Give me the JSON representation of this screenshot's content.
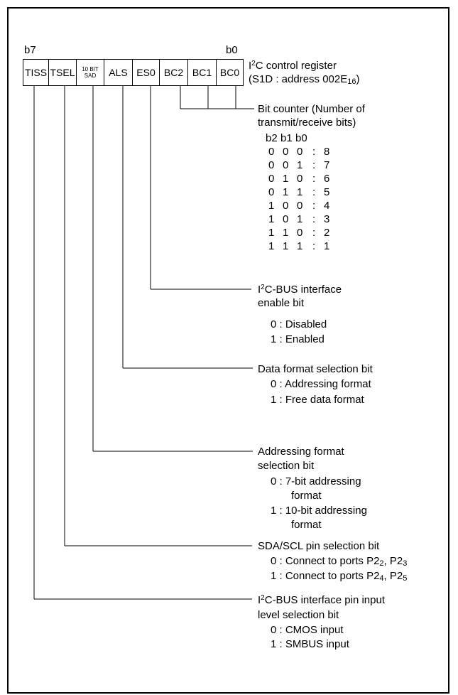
{
  "register": {
    "msb_label": "b7",
    "lsb_label": "b0",
    "bits": [
      "TISS",
      "TSEL",
      "10 BIT SAD",
      "ALS",
      "ES0",
      "BC2",
      "BC1",
      "BC0"
    ],
    "bit_small_lines": [
      "10 BIT",
      "SAD"
    ],
    "title_i": "I",
    "title_sup": "2",
    "title_rest": "C control register",
    "address_prefix": "(S1D : address 002E",
    "address_sub": "16",
    "address_suffix": ")"
  },
  "bit_counter": {
    "title_line1": "Bit counter (Number of",
    "title_line2": "transmit/receive bits)",
    "header": [
      "b2",
      "b1",
      "b0"
    ],
    "rows": [
      {
        "b2": "0",
        "b1": "0",
        "b0": "0",
        "val": "8"
      },
      {
        "b2": "0",
        "b1": "0",
        "b0": "1",
        "val": "7"
      },
      {
        "b2": "0",
        "b1": "1",
        "b0": "0",
        "val": "6"
      },
      {
        "b2": "0",
        "b1": "1",
        "b0": "1",
        "val": "5"
      },
      {
        "b2": "1",
        "b1": "0",
        "b0": "0",
        "val": "4"
      },
      {
        "b2": "1",
        "b1": "0",
        "b0": "1",
        "val": "3"
      },
      {
        "b2": "1",
        "b1": "1",
        "b0": "0",
        "val": "2"
      },
      {
        "b2": "1",
        "b1": "1",
        "b0": "1",
        "val": "1"
      }
    ],
    "colon": ":"
  },
  "es0": {
    "line1_i": "I",
    "line1_sup": "2",
    "line1_rest": "C-BUS interface",
    "line2": "enable bit",
    "opt0": "0 : Disabled",
    "opt1": "1 : Enabled"
  },
  "als": {
    "title": "Data format selection bit",
    "opt0": "0 : Addressing format",
    "opt1": "1 : Free data format"
  },
  "sad": {
    "line1": "Addressing format",
    "line2": "selection bit",
    "opt0a": "0 : 7-bit addressing",
    "opt0b": "format",
    "opt1a": "1 : 10-bit addressing",
    "opt1b": "format"
  },
  "tsel": {
    "title": "SDA/SCL pin selection bit",
    "opt0_prefix": "0 : Connect to ports P2",
    "opt0_sub1": "2",
    "opt0_mid": ", P2",
    "opt0_sub2": "3",
    "opt1_prefix": "1 : Connect to ports P2",
    "opt1_sub1": "4",
    "opt1_mid": ", P2",
    "opt1_sub2": "5"
  },
  "tiss": {
    "line1_i": "I",
    "line1_sup": "2",
    "line1_rest": "C-BUS interface pin input",
    "line2": "level selection bit",
    "opt0": "0 : CMOS input",
    "opt1": "1 : SMBUS input"
  }
}
